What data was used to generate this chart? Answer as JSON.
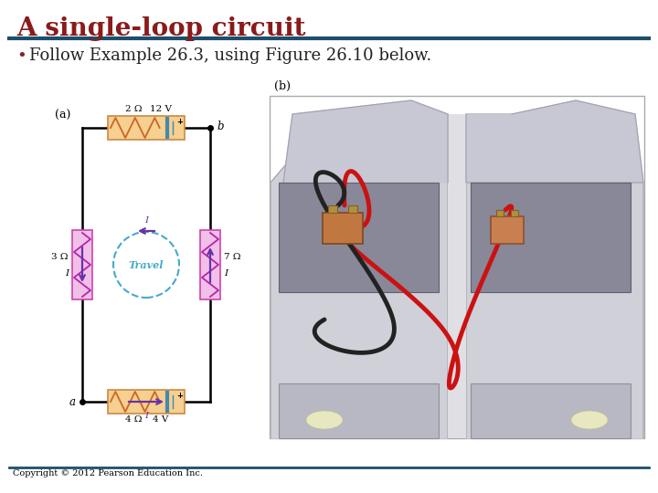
{
  "title": "A single-loop circuit",
  "title_color": "#8B1A1A",
  "title_fontsize": 20,
  "bullet_text": "Follow Example 26.3, using Figure 26.10 below.",
  "bullet_fontsize": 13,
  "separator_color": "#1B4F6B",
  "background_color": "#FFFFFF",
  "copyright_text": "Copyright © 2012 Pearson Education Inc.",
  "copyright_fontsize": 7,
  "label_a": "(a)",
  "label_b": "(b)",
  "wire_color": "#000000",
  "resistor_h_fill": "#F5D090",
  "resistor_h_edge": "#CC8844",
  "resistor_v_fill": "#F0C0E8",
  "resistor_v_edge": "#CC44AA",
  "zigzag_h_color": "#CC6622",
  "zigzag_v_color": "#BB22AA",
  "arrow_color": "#6633AA",
  "travel_circle_color": "#44AACC",
  "travel_text_color": "#44AACC",
  "dot_color": "#000000"
}
